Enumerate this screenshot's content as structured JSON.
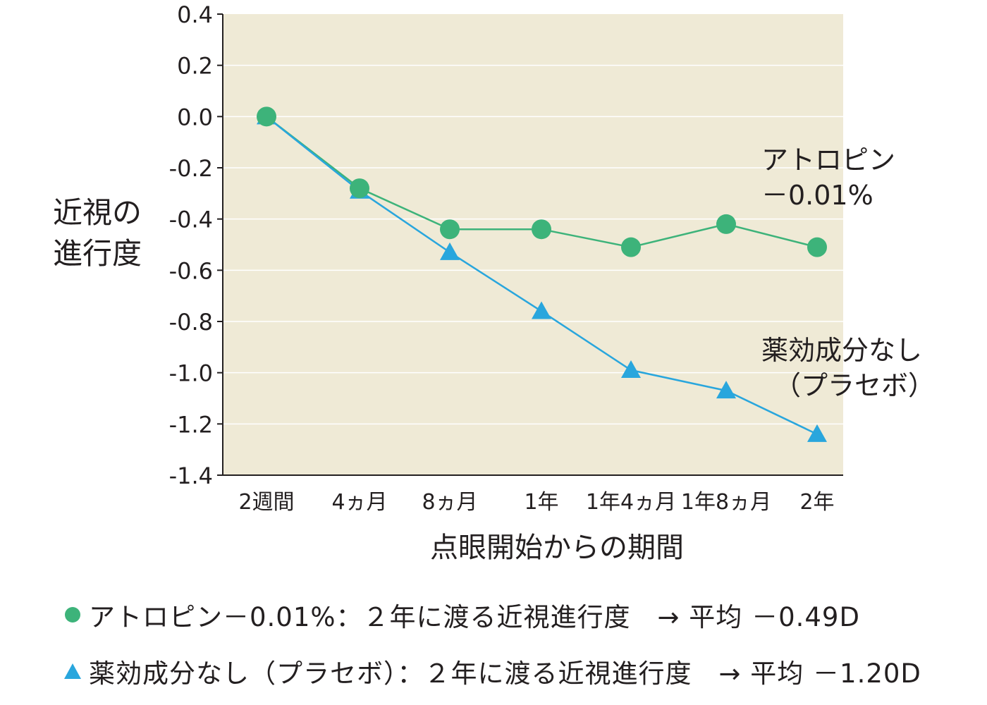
{
  "chart_data": {
    "type": "line",
    "title": "",
    "xlabel": "点眼開始からの期間",
    "ylabel_lines": [
      "近視の",
      "進行度"
    ],
    "categories": [
      "2週間",
      "4ヵ月",
      "8ヵ月",
      "1年",
      "1年4ヵ月",
      "1年8ヵ月",
      "2年"
    ],
    "ylim": [
      -1.4,
      0.4
    ],
    "yticks": [
      "0.4",
      "0.2",
      "0.0",
      "-0.2",
      "-0.4",
      "-0.6",
      "-0.8",
      "-1.0",
      "-1.2",
      "-1.4"
    ],
    "ytick_values": [
      0.4,
      0.2,
      0.0,
      -0.2,
      -0.4,
      -0.6,
      -0.8,
      -1.0,
      -1.2,
      -1.4
    ],
    "grid": true,
    "series": [
      {
        "key": "atropine",
        "label_lines": [
          "アトロピン",
          "－0.01%"
        ],
        "marker": "circle",
        "color": "#3db37a",
        "values": [
          0.0,
          -0.28,
          -0.44,
          -0.44,
          -0.51,
          -0.42,
          -0.51
        ]
      },
      {
        "key": "placebo",
        "label_lines": [
          "薬効成分なし",
          "（プラセボ）"
        ],
        "marker": "triangle",
        "color": "#29a6dd",
        "values": [
          0.0,
          -0.29,
          -0.53,
          -0.76,
          -0.99,
          -1.07,
          -1.24
        ]
      }
    ]
  },
  "legend": [
    {
      "text": "アトロピン－0.01%：２年に渡る近視進行度　→ 平均 －0.49D",
      "marker": "circle",
      "color": "#3db37a"
    },
    {
      "text": "薬効成分なし（プラセボ）：２年に渡る近視進行度　→ 平均 －1.20D",
      "marker": "triangle",
      "color": "#29a6dd"
    }
  ],
  "colors": {
    "plot_bg": "#efead6",
    "grid": "#ffffff",
    "axis": "#231f20"
  }
}
